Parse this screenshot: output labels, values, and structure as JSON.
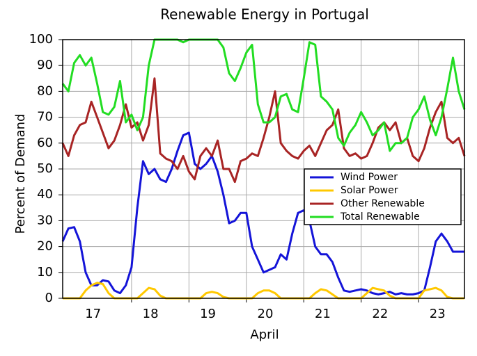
{
  "chart_data": {
    "type": "line",
    "title": "Renewable Energy in Portugal",
    "xlabel": "April",
    "ylabel": "Percent of Demand",
    "x": [
      16.8,
      16.9,
      17.0,
      17.1,
      17.2,
      17.3,
      17.4,
      17.5,
      17.6,
      17.7,
      17.8,
      17.9,
      18.0,
      18.1,
      18.2,
      18.3,
      18.4,
      18.5,
      18.6,
      18.7,
      18.8,
      18.9,
      19.0,
      19.1,
      19.2,
      19.3,
      19.4,
      19.5,
      19.6,
      19.7,
      19.8,
      19.9,
      20.0,
      20.1,
      20.2,
      20.3,
      20.4,
      20.5,
      20.6,
      20.7,
      20.8,
      20.9,
      21.0,
      21.1,
      21.2,
      21.3,
      21.4,
      21.5,
      21.6,
      21.7,
      21.8,
      21.9,
      22.0,
      22.1,
      22.2,
      22.3,
      22.4,
      22.5,
      22.6,
      22.7,
      22.8,
      22.9,
      23.0,
      23.1,
      23.2,
      23.3,
      23.4,
      23.5,
      23.6,
      23.7,
      23.8
    ],
    "series": [
      {
        "name": "Wind Power",
        "color": "#1414d8",
        "values": [
          22,
          27,
          27.5,
          22,
          10,
          5,
          5,
          7,
          6.5,
          3,
          2,
          5,
          12,
          35,
          53,
          48,
          50,
          46,
          45,
          50,
          57,
          63,
          64,
          52,
          50,
          52,
          55,
          49,
          40,
          29,
          30,
          33,
          33,
          20,
          15,
          10,
          11,
          12,
          17,
          15,
          25,
          33,
          34,
          30,
          20,
          17,
          17,
          14,
          8,
          3,
          2.5,
          3,
          3.5,
          3,
          2,
          1.5,
          2,
          2.5,
          1.5,
          2,
          1.5,
          1.5,
          2,
          3,
          12,
          22,
          25,
          22,
          18,
          18,
          18
        ]
      },
      {
        "name": "Solar Power",
        "color": "#ffc800",
        "values": [
          0,
          0,
          0,
          0,
          3,
          5,
          6,
          5.5,
          2,
          0,
          0,
          0,
          0,
          0,
          2,
          4,
          3.5,
          1,
          0,
          0,
          0,
          0,
          0,
          0,
          0,
          2,
          2.5,
          2,
          0.5,
          0,
          0,
          0,
          0,
          0,
          2,
          3,
          3,
          2,
          0,
          0,
          0,
          0,
          0,
          0,
          2,
          3.5,
          3,
          1.5,
          0,
          0,
          0,
          0,
          0,
          2,
          4,
          3.5,
          3,
          1,
          0,
          0,
          0,
          0,
          0,
          3,
          3.5,
          4,
          3,
          0.5,
          0,
          0,
          0
        ]
      },
      {
        "name": "Other Renewable",
        "color": "#a82424",
        "values": [
          60,
          55,
          63,
          67,
          68,
          76,
          70,
          64,
          58,
          61,
          67,
          75,
          66,
          68,
          61,
          67,
          85,
          56,
          54,
          53,
          50,
          55,
          49,
          46,
          55,
          58,
          55,
          61,
          50,
          50,
          45,
          53,
          54,
          56,
          55,
          62,
          70,
          80,
          60,
          57,
          55,
          54,
          57,
          59,
          55,
          60,
          65,
          67,
          73,
          58,
          55,
          56,
          54,
          55,
          60,
          66,
          68,
          65,
          68,
          60,
          62,
          55,
          53,
          58,
          66,
          72,
          76,
          62,
          60,
          62,
          55
        ]
      },
      {
        "name": "Total Renewable",
        "color": "#22dd22",
        "values": [
          83,
          80,
          91,
          94,
          90,
          93,
          83,
          72,
          71,
          74,
          84,
          68,
          71,
          65,
          70,
          90,
          100,
          100,
          100,
          100,
          100,
          99,
          100,
          100,
          100,
          100,
          100,
          100,
          97,
          87,
          84,
          89,
          95,
          98,
          75,
          68,
          68,
          70,
          78,
          79,
          73,
          72,
          85,
          99,
          98,
          78,
          76,
          73,
          62,
          59,
          64,
          67,
          72,
          68,
          63,
          65,
          68,
          57,
          60,
          60,
          62,
          70,
          73,
          78,
          69,
          63,
          70,
          81,
          93,
          80,
          73
        ]
      }
    ],
    "xlim": [
      16.8,
      23.8
    ],
    "xticks": [
      {
        "value": 17.33,
        "label": "17"
      },
      {
        "value": 18.33,
        "label": "18"
      },
      {
        "value": 19.33,
        "label": "19"
      },
      {
        "value": 20.33,
        "label": "20"
      },
      {
        "value": 21.33,
        "label": "21"
      },
      {
        "value": 22.33,
        "label": "22"
      },
      {
        "value": 23.33,
        "label": "23"
      }
    ],
    "xgrid": [
      18,
      19,
      20,
      21,
      22,
      23
    ],
    "ylim": [
      0,
      100
    ],
    "yticks": [
      0,
      10,
      20,
      30,
      40,
      50,
      60,
      70,
      80,
      90,
      100
    ],
    "grid": true,
    "legend": "center right"
  }
}
